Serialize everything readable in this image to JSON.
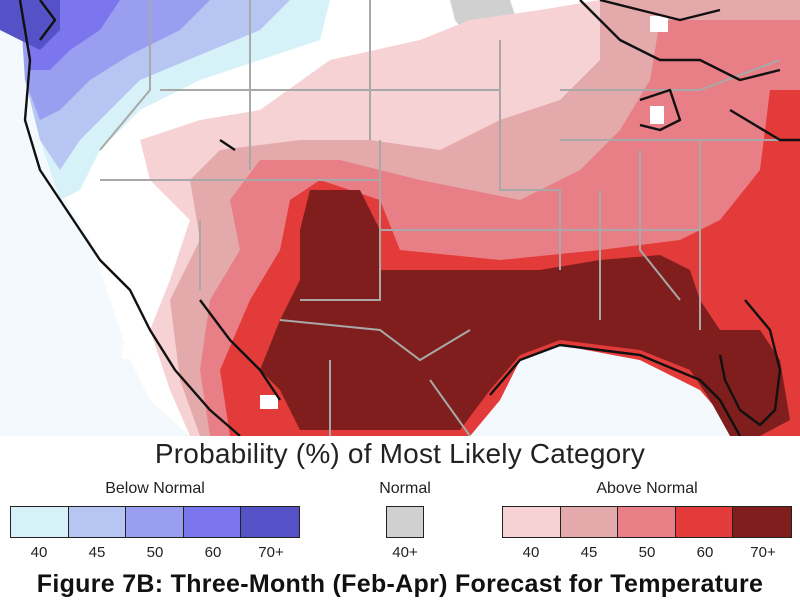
{
  "legend": {
    "title": "Probability (%) of Most Likely Category",
    "below": {
      "label": "Below Normal",
      "ticks": [
        "40",
        "45",
        "50",
        "60",
        "70+"
      ],
      "colors": [
        "#d6f1f8",
        "#b7c5f2",
        "#9a9ef0",
        "#7b76ee",
        "#5551c6"
      ]
    },
    "normal": {
      "label": "Normal",
      "ticks": [
        "40+"
      ],
      "colors": [
        "#d0d0d0"
      ]
    },
    "above": {
      "label": "Above Normal",
      "ticks": [
        "40",
        "45",
        "50",
        "60",
        "70+"
      ],
      "colors": [
        "#f7d2d4",
        "#e4a9ab",
        "#e97f86",
        "#e33b39",
        "#7f1e1c"
      ]
    }
  },
  "caption": "Figure 7B: Three-Month (Feb-Apr) Forecast for Temperature"
}
